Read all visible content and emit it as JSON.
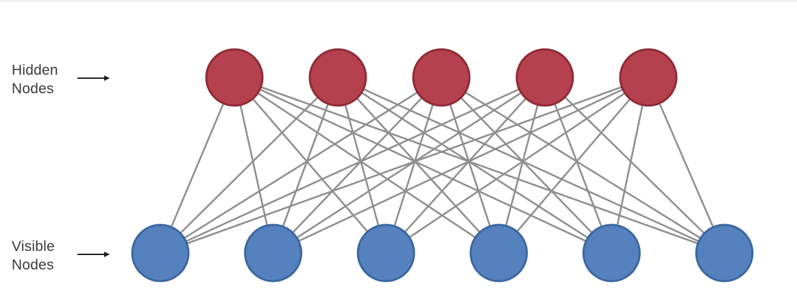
{
  "labels": {
    "hidden": {
      "line1": "Hidden",
      "line2": "Nodes"
    },
    "visible": {
      "line1": "Visible",
      "line2": "Nodes"
    }
  },
  "colors": {
    "hidden_fill": "#b4414d",
    "hidden_stroke": "#8e2b36",
    "visible_fill": "#5582be",
    "visible_stroke": "#3b679f",
    "edge": "#8f8f8f",
    "arrow": "#1f1f1f"
  },
  "network": {
    "hidden_count": 5,
    "visible_count": 6,
    "fully_connected": true
  }
}
